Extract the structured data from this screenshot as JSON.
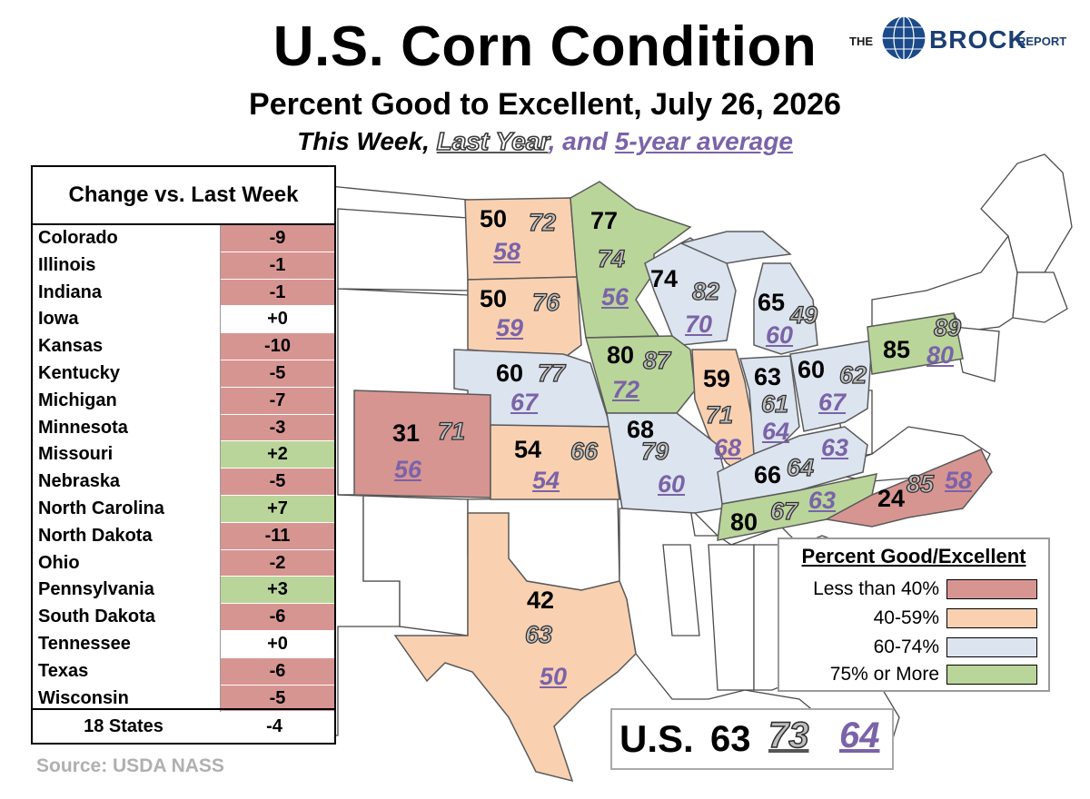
{
  "title": "U.S. Corn Condition",
  "subtitle": "Percent Good to Excellent, July 26, 2026",
  "legend_line": {
    "this_week": "This Week,",
    "last_year": "Last Year",
    "and": ", and ",
    "five_year": "5-year average"
  },
  "brand": {
    "the": "THE",
    "name": "BROCK",
    "report": "REPORT"
  },
  "colors": {
    "lt40": "#d79592",
    "r40_59": "#f9d1b1",
    "r60_74": "#dce4ef",
    "r75": "#bad59a"
  },
  "change_table": {
    "header": "Change vs. Last Week",
    "rows": [
      {
        "state": "Colorado",
        "change": "-9",
        "cat": "neg"
      },
      {
        "state": "Illinois",
        "change": "-1",
        "cat": "neg"
      },
      {
        "state": "Indiana",
        "change": "-1",
        "cat": "neg"
      },
      {
        "state": "Iowa",
        "change": "+0",
        "cat": "zero"
      },
      {
        "state": "Kansas",
        "change": "-10",
        "cat": "neg"
      },
      {
        "state": "Kentucky",
        "change": "-5",
        "cat": "neg"
      },
      {
        "state": "Michigan",
        "change": "-7",
        "cat": "neg"
      },
      {
        "state": "Minnesota",
        "change": "-3",
        "cat": "neg"
      },
      {
        "state": "Missouri",
        "change": "+2",
        "cat": "pos"
      },
      {
        "state": "Nebraska",
        "change": "-5",
        "cat": "neg"
      },
      {
        "state": "North Carolina",
        "change": "+7",
        "cat": "pos"
      },
      {
        "state": "North Dakota",
        "change": "-11",
        "cat": "neg"
      },
      {
        "state": "Ohio",
        "change": "-2",
        "cat": "neg"
      },
      {
        "state": "Pennsylvania",
        "change": "+3",
        "cat": "pos"
      },
      {
        "state": "South Dakota",
        "change": "-6",
        "cat": "neg"
      },
      {
        "state": "Tennessee",
        "change": "+0",
        "cat": "zero"
      },
      {
        "state": "Texas",
        "change": "-6",
        "cat": "neg"
      },
      {
        "state": "Wisconsin",
        "change": "-5",
        "cat": "neg"
      }
    ],
    "total_label": "18 States",
    "total_change": "-4"
  },
  "states": [
    {
      "key": "ND",
      "tw": "50",
      "ly": "72",
      "fa": "58",
      "cat": "r40_59"
    },
    {
      "key": "MN",
      "tw": "77",
      "ly": "74",
      "fa": "56",
      "cat": "r75"
    },
    {
      "key": "SD",
      "tw": "50",
      "ly": "76",
      "fa": "59",
      "cat": "r40_59"
    },
    {
      "key": "WI",
      "tw": "74",
      "ly": "82",
      "fa": "70",
      "cat": "r60_74"
    },
    {
      "key": "MI",
      "tw": "65",
      "ly": "49",
      "fa": "60",
      "cat": "r60_74"
    },
    {
      "key": "NE",
      "tw": "60",
      "ly": "77",
      "fa": "67",
      "cat": "r60_74"
    },
    {
      "key": "IA",
      "tw": "80",
      "ly": "87",
      "fa": "72",
      "cat": "r75"
    },
    {
      "key": "IL",
      "tw": "59",
      "ly": "71",
      "fa": "68",
      "cat": "r40_59"
    },
    {
      "key": "IN",
      "tw": "63",
      "ly": "61",
      "fa": "64",
      "cat": "r60_74"
    },
    {
      "key": "OH",
      "tw": "60",
      "ly": "62",
      "fa": "67",
      "cat": "r60_74"
    },
    {
      "key": "PA",
      "tw": "85",
      "ly": "89",
      "fa": "80",
      "cat": "r75"
    },
    {
      "key": "CO",
      "tw": "31",
      "ly": "71",
      "fa": "56",
      "cat": "lt40"
    },
    {
      "key": "KS",
      "tw": "54",
      "ly": "66",
      "fa": "54",
      "cat": "r40_59"
    },
    {
      "key": "MO",
      "tw": "68",
      "ly": "79",
      "fa": "60",
      "cat": "r60_74"
    },
    {
      "key": "KY",
      "tw": "66",
      "ly": "64",
      "fa": "63",
      "cat": "r60_74"
    },
    {
      "key": "TN",
      "tw": "80",
      "ly": "67",
      "fa": "63",
      "cat": "r75"
    },
    {
      "key": "NC",
      "tw": "24",
      "ly": "85",
      "fa": "58",
      "cat": "lt40"
    },
    {
      "key": "TX",
      "tw": "42",
      "ly": "63",
      "fa": "50",
      "cat": "r40_59"
    }
  ],
  "legend_box": {
    "title": "Percent Good/Excellent",
    "items": [
      {
        "label": "Less than 40%",
        "cat": "lt40"
      },
      {
        "label": "40-59%",
        "cat": "r40_59"
      },
      {
        "label": "60-74%",
        "cat": "r60_74"
      },
      {
        "label": "75% or More",
        "cat": "r75"
      }
    ]
  },
  "us_total": {
    "label": "U.S.",
    "tw": "63",
    "ly": "73",
    "fa": "64"
  },
  "source": "Source: USDA NASS"
}
